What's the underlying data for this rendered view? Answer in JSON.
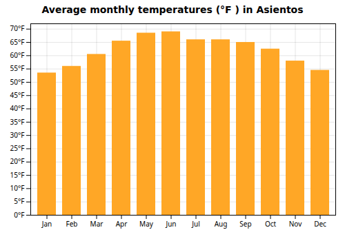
{
  "chart_data": {
    "type": "bar",
    "title": "Average monthly temperatures (°F ) in Asientos",
    "categories": [
      "Jan",
      "Feb",
      "Mar",
      "Apr",
      "May",
      "Jun",
      "Jul",
      "Aug",
      "Sep",
      "Oct",
      "Nov",
      "Dec"
    ],
    "values": [
      53.5,
      56.0,
      60.5,
      65.5,
      68.5,
      69.0,
      66.0,
      66.0,
      65.0,
      62.5,
      58.0,
      54.5
    ],
    "color": "#FFA726",
    "ylim": [
      0,
      72
    ],
    "yticks": [
      {
        "value": 0,
        "label": "0°F"
      },
      {
        "value": 5,
        "label": "5°F"
      },
      {
        "value": 10,
        "label": "10°F"
      },
      {
        "value": 15,
        "label": "15°F"
      },
      {
        "value": 20,
        "label": "20°F"
      },
      {
        "value": 25,
        "label": "25°F"
      },
      {
        "value": 30,
        "label": "30°F"
      },
      {
        "value": 35,
        "label": "35°F"
      },
      {
        "value": 40,
        "label": "40°F"
      },
      {
        "value": 45,
        "label": "45°F"
      },
      {
        "value": 50,
        "label": "50°F"
      },
      {
        "value": 55,
        "label": "55°F"
      },
      {
        "value": 60,
        "label": "60°F"
      },
      {
        "value": 65,
        "label": "65°F"
      },
      {
        "value": 70,
        "label": "70°F"
      }
    ],
    "grid": true
  }
}
